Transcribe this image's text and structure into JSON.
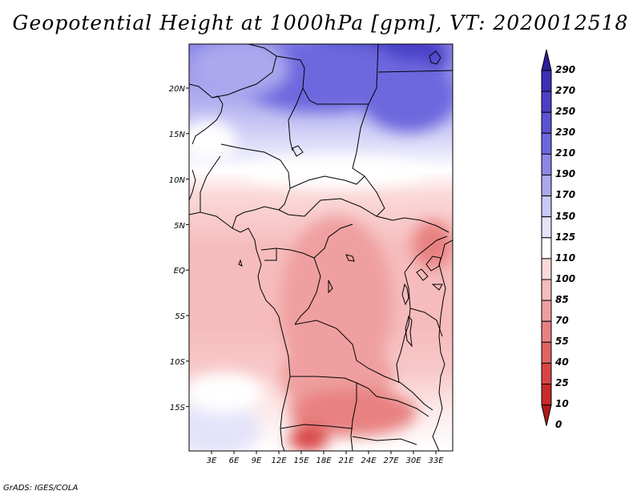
{
  "title": "Geopotential Height at 1000hPa [gpm], VT: 2020012518",
  "credit": "GrADS: IGES/COLA",
  "map": {
    "lon_labels": [
      "3E",
      "6E",
      "9E",
      "12E",
      "15E",
      "18E",
      "21E",
      "24E",
      "27E",
      "30E",
      "33E"
    ],
    "lat_labels": [
      "20N",
      "15N",
      "10N",
      "5N",
      "EQ",
      "5S",
      "10S",
      "15S"
    ]
  },
  "colorbar": {
    "labels": [
      "290",
      "270",
      "250",
      "230",
      "210",
      "190",
      "170",
      "150",
      "125",
      "110",
      "100",
      "85",
      "70",
      "55",
      "40",
      "25",
      "10",
      "0"
    ],
    "colors": [
      "#2d1e9c",
      "#3b30b8",
      "#4a41c8",
      "#5a53d4",
      "#6d67de",
      "#8c87e6",
      "#aba8ee",
      "#cac8f4",
      "#e4e3fa",
      "#ffffff",
      "#fbd9d9",
      "#f6bcbc",
      "#ef9f9f",
      "#e88181",
      "#e16464",
      "#d94545",
      "#c92a2a",
      "#b01818"
    ]
  }
}
